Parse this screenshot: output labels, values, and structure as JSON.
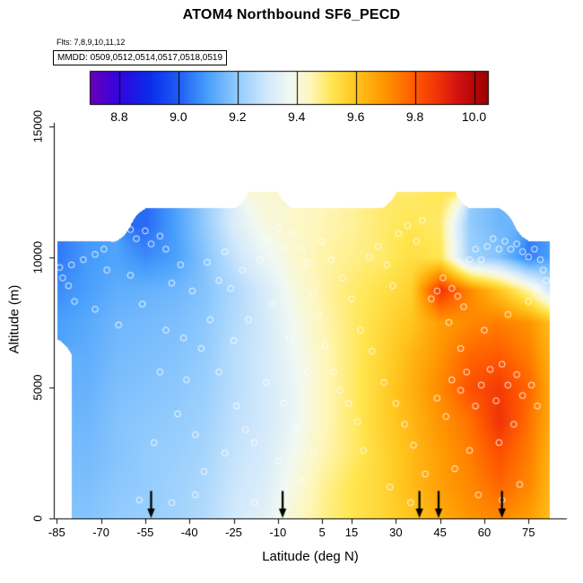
{
  "header": {
    "title": "ATOM4 Northbound SF6_PECD",
    "flights": "Flts: 7,8,9,10,11,12",
    "mmdd": "MMDD: 0509,0512,0514,0517,0518,0519"
  },
  "chart_data": {
    "type": "heatmap",
    "title": "ATOM4 Northbound SF6_PECD",
    "xlabel": "Latitude (deg N)",
    "ylabel": "Altitude (m)",
    "xlim": [
      -86,
      88
    ],
    "ylim": [
      0,
      15200
    ],
    "xticks": [
      -85,
      -70,
      -55,
      -40,
      -25,
      -10,
      5,
      15,
      30,
      45,
      60,
      75
    ],
    "yticks": [
      0,
      5000,
      10000,
      15000
    ],
    "grid_on": false,
    "colorbar": {
      "position": "top",
      "range": [
        8.7,
        10.05
      ],
      "ticks": [
        8.8,
        9.0,
        9.2,
        9.4,
        9.6,
        9.8,
        10.0
      ],
      "stops": [
        [
          8.7,
          "#6A00B8"
        ],
        [
          8.8,
          "#3205E0"
        ],
        [
          8.9,
          "#0B2BEA"
        ],
        [
          9.0,
          "#1E5CF5"
        ],
        [
          9.1,
          "#49A0FB"
        ],
        [
          9.2,
          "#93CCFD"
        ],
        [
          9.3,
          "#D2E9FB"
        ],
        [
          9.38,
          "#F2F9F2"
        ],
        [
          9.45,
          "#FFF6B8"
        ],
        [
          9.52,
          "#FFE650"
        ],
        [
          9.6,
          "#FFC61E"
        ],
        [
          9.7,
          "#FF9400"
        ],
        [
          9.8,
          "#FF5A00"
        ],
        [
          9.88,
          "#F03208"
        ],
        [
          9.95,
          "#D01010"
        ],
        [
          10.05,
          "#9A0000"
        ]
      ]
    },
    "grid": {
      "lats": [
        -85,
        -75,
        -65,
        -55,
        -45,
        -35,
        -25,
        -15,
        -5,
        5,
        15,
        25,
        35,
        45,
        55,
        65,
        75,
        82
      ],
      "alts": [
        0,
        1250,
        2500,
        3750,
        5000,
        6250,
        7500,
        8750,
        10000,
        11250,
        12500
      ],
      "values": [
        [
          null,
          9.18,
          9.2,
          9.21,
          9.22,
          9.25,
          9.3,
          9.34,
          9.42,
          9.48,
          9.52,
          9.56,
          9.6,
          9.65,
          9.7,
          9.72,
          9.68,
          9.62
        ],
        [
          null,
          9.17,
          9.19,
          9.2,
          9.22,
          9.24,
          9.29,
          9.32,
          9.4,
          9.47,
          9.52,
          9.56,
          9.62,
          9.68,
          9.72,
          9.78,
          9.72,
          9.63
        ],
        [
          null,
          9.16,
          9.18,
          9.2,
          9.21,
          9.23,
          9.28,
          9.31,
          9.38,
          9.45,
          9.5,
          9.56,
          9.62,
          9.68,
          9.74,
          9.82,
          9.74,
          9.64
        ],
        [
          null,
          9.15,
          9.18,
          9.19,
          9.2,
          9.22,
          9.27,
          9.3,
          9.36,
          9.44,
          9.5,
          9.57,
          9.63,
          9.7,
          9.76,
          9.88,
          9.76,
          9.66
        ],
        [
          null,
          9.14,
          9.17,
          9.18,
          9.19,
          9.21,
          9.26,
          9.3,
          9.36,
          9.44,
          9.5,
          9.57,
          9.64,
          9.72,
          9.82,
          9.86,
          9.78,
          9.66
        ],
        [
          null,
          9.13,
          9.16,
          9.17,
          9.18,
          9.2,
          9.26,
          9.3,
          9.37,
          9.44,
          9.5,
          9.56,
          9.63,
          9.7,
          9.78,
          9.8,
          9.74,
          9.64
        ],
        [
          9.1,
          9.12,
          9.15,
          9.16,
          9.17,
          9.19,
          9.25,
          9.3,
          9.38,
          9.45,
          9.5,
          9.55,
          9.6,
          9.68,
          9.72,
          9.74,
          9.7,
          9.62
        ],
        [
          9.07,
          9.1,
          9.13,
          9.14,
          9.15,
          9.18,
          9.24,
          9.31,
          9.4,
          9.46,
          9.5,
          9.53,
          9.57,
          9.88,
          9.72,
          9.6,
          9.45,
          9.3
        ],
        [
          9.04,
          9.09,
          9.11,
          9.07,
          9.1,
          9.18,
          9.28,
          9.36,
          9.42,
          9.46,
          9.48,
          9.5,
          9.54,
          9.52,
          9.22,
          9.18,
          9.05,
          9.1
        ],
        [
          null,
          null,
          null,
          9.02,
          9.1,
          9.2,
          9.32,
          9.4,
          9.43,
          9.45,
          9.47,
          9.5,
          9.52,
          9.5,
          9.2,
          9.15,
          null,
          null
        ],
        [
          null,
          null,
          null,
          null,
          null,
          null,
          null,
          9.42,
          null,
          null,
          null,
          null,
          9.5,
          9.52,
          null,
          null,
          null,
          null
        ]
      ]
    },
    "profile_arrows_lat": [
      -53,
      -8.4,
      38,
      44.5,
      66
    ],
    "sample_points": [
      [
        -84,
        9600
      ],
      [
        -83,
        9200
      ],
      [
        -81,
        8900
      ],
      [
        -80,
        9700
      ],
      [
        -79,
        8300
      ],
      [
        -76,
        9900
      ],
      [
        -72,
        10100
      ],
      [
        -72,
        8000
      ],
      [
        -69,
        10300
      ],
      [
        -68,
        9500
      ],
      [
        -66,
        10700
      ],
      [
        -64,
        7400
      ],
      [
        -63,
        10900
      ],
      [
        -60,
        11050
      ],
      [
        -60,
        9300
      ],
      [
        -58,
        10700
      ],
      [
        -57,
        700
      ],
      [
        -56,
        8200
      ],
      [
        -55,
        11000
      ],
      [
        -53,
        10500
      ],
      [
        -52,
        2900
      ],
      [
        -50,
        10800
      ],
      [
        -50,
        5600
      ],
      [
        -48,
        10300
      ],
      [
        -48,
        7200
      ],
      [
        -46,
        9000
      ],
      [
        -46,
        600
      ],
      [
        -44,
        4000
      ],
      [
        -43,
        9700
      ],
      [
        -42,
        6900
      ],
      [
        -41,
        5300
      ],
      [
        -39,
        8700
      ],
      [
        -38,
        3200
      ],
      [
        -38,
        900
      ],
      [
        -36,
        6500
      ],
      [
        -35,
        1800
      ],
      [
        -34,
        9800
      ],
      [
        -33,
        7600
      ],
      [
        -30,
        9100
      ],
      [
        -30,
        5600
      ],
      [
        -28,
        10200
      ],
      [
        -28,
        2500
      ],
      [
        -26,
        8800
      ],
      [
        -25,
        6800
      ],
      [
        -24,
        4300
      ],
      [
        -22,
        9500
      ],
      [
        -21,
        3400
      ],
      [
        -20,
        7600
      ],
      [
        -18,
        2900
      ],
      [
        -18,
        600
      ],
      [
        -16,
        9900
      ],
      [
        -14,
        5200
      ],
      [
        -13,
        10600
      ],
      [
        -12,
        8200
      ],
      [
        -10,
        11100
      ],
      [
        -10,
        2200
      ],
      [
        -8,
        10400
      ],
      [
        -8,
        4400
      ],
      [
        -6,
        6900
      ],
      [
        -5,
        10900
      ],
      [
        -4,
        3500
      ],
      [
        -2,
        10300
      ],
      [
        -2,
        1400
      ],
      [
        0,
        9800
      ],
      [
        0,
        5600
      ],
      [
        2,
        8600
      ],
      [
        2,
        2500
      ],
      [
        4,
        7800
      ],
      [
        5,
        10600
      ],
      [
        6,
        6600
      ],
      [
        8,
        9900
      ],
      [
        9,
        5600
      ],
      [
        11,
        4900
      ],
      [
        12,
        9200
      ],
      [
        14,
        4400
      ],
      [
        15,
        8400
      ],
      [
        17,
        3700
      ],
      [
        18,
        7200
      ],
      [
        19,
        2600
      ],
      [
        21,
        10000
      ],
      [
        22,
        6400
      ],
      [
        24,
        10400
      ],
      [
        26,
        5200
      ],
      [
        27,
        9700
      ],
      [
        29,
        8900
      ],
      [
        30,
        4400
      ],
      [
        31,
        10900
      ],
      [
        33,
        3600
      ],
      [
        34,
        11200
      ],
      [
        36,
        2800
      ],
      [
        37,
        10600
      ],
      [
        39,
        11400
      ],
      [
        40,
        1700
      ],
      [
        42,
        8400
      ],
      [
        44,
        8700
      ],
      [
        44,
        4600
      ],
      [
        46,
        9200
      ],
      [
        47,
        3900
      ],
      [
        48,
        7500
      ],
      [
        49,
        8800
      ],
      [
        49,
        5300
      ],
      [
        51,
        8500
      ],
      [
        52,
        6500
      ],
      [
        52,
        4900
      ],
      [
        53,
        8100
      ],
      [
        54,
        5600
      ],
      [
        55,
        9900
      ],
      [
        55,
        2600
      ],
      [
        57,
        10300
      ],
      [
        57,
        4300
      ],
      [
        59,
        9900
      ],
      [
        59,
        5100
      ],
      [
        60,
        7200
      ],
      [
        61,
        10400
      ],
      [
        62,
        5700
      ],
      [
        63,
        10700
      ],
      [
        64,
        4500
      ],
      [
        65,
        10300
      ],
      [
        65,
        2900
      ],
      [
        66,
        5900
      ],
      [
        67,
        10600
      ],
      [
        68,
        5100
      ],
      [
        68,
        7800
      ],
      [
        69,
        10300
      ],
      [
        70,
        3600
      ],
      [
        71,
        10500
      ],
      [
        71,
        5500
      ],
      [
        73,
        10200
      ],
      [
        73,
        4700
      ],
      [
        75,
        10000
      ],
      [
        75,
        8300
      ],
      [
        76,
        5100
      ],
      [
        77,
        10300
      ],
      [
        78,
        4300
      ],
      [
        78,
        8800
      ],
      [
        79,
        9900
      ],
      [
        80,
        9500
      ],
      [
        81,
        9100
      ],
      [
        58,
        900
      ],
      [
        66,
        700
      ],
      [
        72,
        1300
      ],
      [
        50,
        1900
      ],
      [
        35,
        600
      ],
      [
        28,
        1200
      ]
    ]
  }
}
